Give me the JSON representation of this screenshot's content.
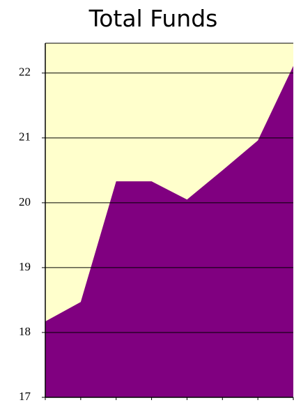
{
  "chart_data": {
    "type": "area",
    "title": "Total Funds",
    "categories": [
      null,
      null,
      null,
      null,
      null,
      null,
      null,
      null
    ],
    "values": [
      18.17,
      18.47,
      20.33,
      20.33,
      20.05,
      20.5,
      20.96,
      22.11
    ],
    "color": "#800080",
    "background": "#ffffcc",
    "ylim": [
      17,
      22.46
    ],
    "yticks": [
      17,
      18,
      19,
      20,
      21,
      22
    ],
    "grid": true
  }
}
